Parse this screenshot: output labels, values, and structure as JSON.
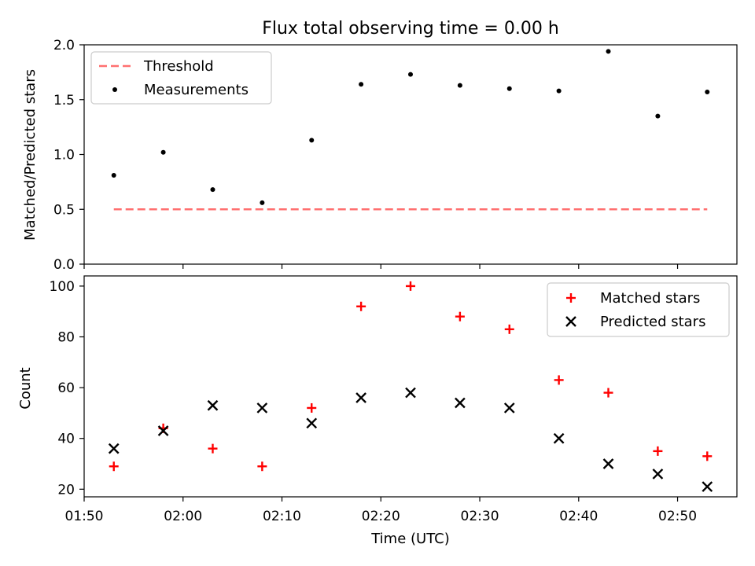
{
  "title": "Flux total observing time = 0.00 h",
  "colors": {
    "threshold": "#ff7070",
    "measurements": "#000000",
    "matched": "#ff0000",
    "predicted": "#000000"
  },
  "chart_data": [
    {
      "type": "scatter",
      "ylabel": "Matched/Predicted stars",
      "ylim": [
        0,
        2
      ],
      "yticks": [
        "0.0",
        "0.5",
        "1.0",
        "1.5",
        "2.0"
      ],
      "xlim": [
        "01:50",
        "02:56"
      ],
      "legend": {
        "placement": "top-left",
        "threshold_label": "Threshold",
        "measurements_label": "Measurements"
      },
      "threshold": {
        "value": 0.5,
        "x_start": "01:53",
        "x_end": "02:53"
      },
      "x": [
        "01:53",
        "01:58",
        "02:03",
        "02:08",
        "02:13",
        "02:18",
        "02:23",
        "02:28",
        "02:33",
        "02:38",
        "02:43",
        "02:48",
        "02:53"
      ],
      "series": [
        {
          "name": "Measurements",
          "values": [
            0.81,
            1.02,
            0.68,
            0.56,
            1.13,
            1.64,
            1.73,
            1.63,
            1.6,
            1.58,
            1.94,
            1.35,
            1.57
          ]
        }
      ]
    },
    {
      "type": "scatter",
      "ylabel": "Count",
      "xlabel": "Time (UTC)",
      "ylim": [
        17,
        104
      ],
      "yticks": [
        "20",
        "40",
        "60",
        "80",
        "100"
      ],
      "xlim": [
        "01:50",
        "02:56"
      ],
      "xticks": [
        "01:50",
        "02:00",
        "02:10",
        "02:20",
        "02:30",
        "02:40",
        "02:50"
      ],
      "legend": {
        "placement": "top-right",
        "matched_label": "Matched stars",
        "predicted_label": "Predicted stars"
      },
      "x": [
        "01:53",
        "01:58",
        "02:03",
        "02:08",
        "02:13",
        "02:18",
        "02:23",
        "02:28",
        "02:33",
        "02:38",
        "02:43",
        "02:48",
        "02:53"
      ],
      "series": [
        {
          "name": "Matched stars",
          "values": [
            29,
            44,
            36,
            29,
            52,
            92,
            100,
            88,
            83,
            63,
            58,
            35,
            33
          ]
        },
        {
          "name": "Predicted stars",
          "values": [
            36,
            43,
            53,
            52,
            46,
            56,
            58,
            54,
            52,
            40,
            30,
            26,
            21
          ]
        }
      ]
    }
  ]
}
